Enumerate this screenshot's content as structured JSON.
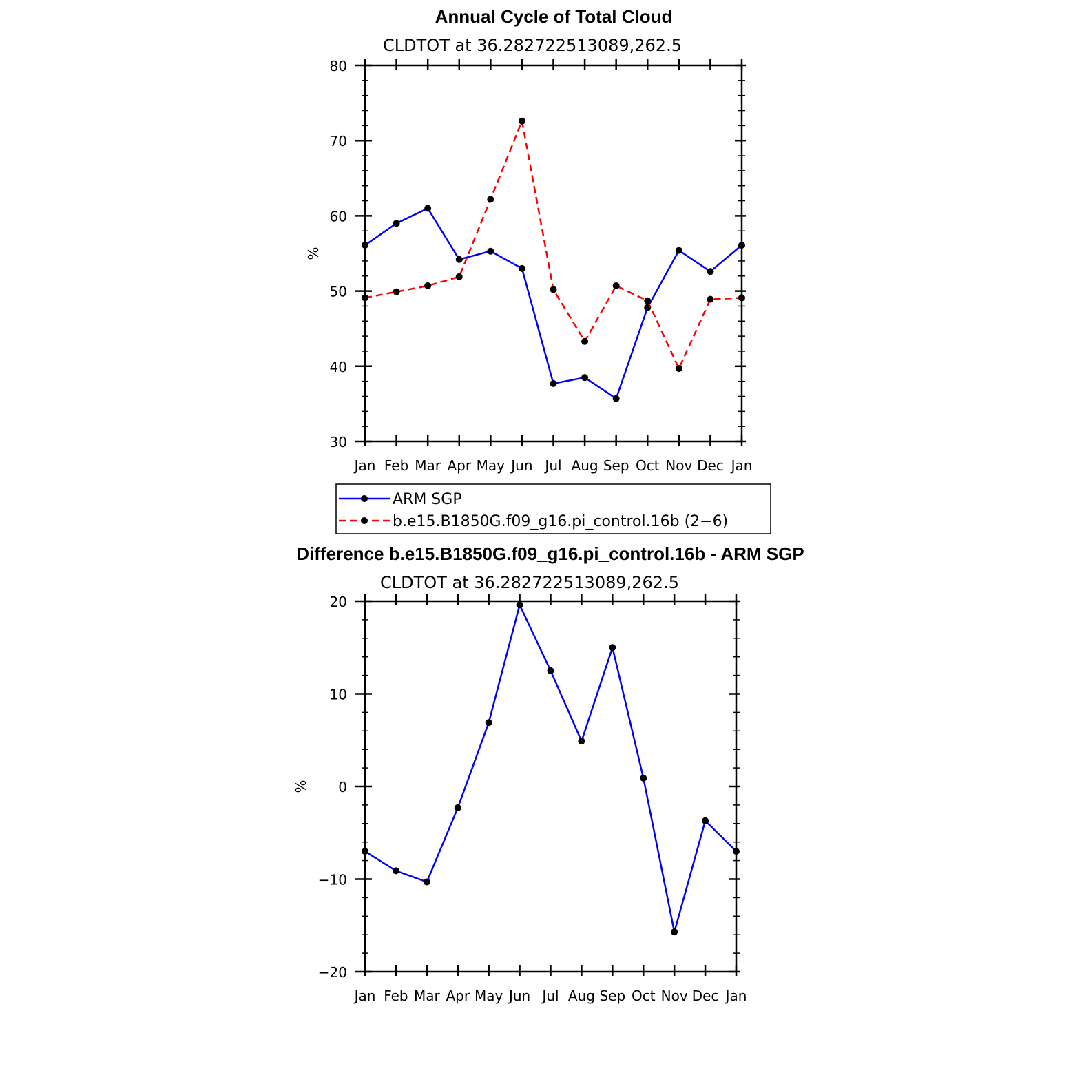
{
  "chart_data": [
    {
      "type": "line",
      "title": "Annual Cycle of Total Cloud",
      "subtitle": "CLDTOT at 36.282722513089,262.5",
      "ylabel": "%",
      "xlabel": "",
      "categories": [
        "Jan",
        "Feb",
        "Mar",
        "Apr",
        "May",
        "Jun",
        "Jul",
        "Aug",
        "Sep",
        "Oct",
        "Nov",
        "Dec",
        "Jan"
      ],
      "ylim": [
        30,
        80
      ],
      "yticks": [
        30,
        40,
        50,
        60,
        70,
        80
      ],
      "series": [
        {
          "name": "ARM SGP",
          "color": "#0000ff",
          "dash": "solid",
          "values": [
            56.1,
            59.0,
            61.0,
            54.2,
            55.3,
            53.0,
            37.7,
            38.5,
            35.7,
            47.8,
            55.4,
            52.6,
            56.1
          ]
        },
        {
          "name": "b.e15.B1850G.f09_g16.pi_control.16b (2−6)",
          "color": "#ff0000",
          "dash": "dashed",
          "values": [
            49.1,
            49.9,
            50.7,
            51.9,
            62.2,
            72.6,
            50.2,
            43.3,
            50.7,
            48.7,
            39.7,
            48.9,
            49.1
          ]
        }
      ],
      "legend": "bottom",
      "grid": false
    },
    {
      "type": "line",
      "title": "Difference b.e15.B1850G.f09_g16.pi_control.16b - ARM SGP",
      "subtitle": "CLDTOT at 36.282722513089,262.5",
      "ylabel": "%",
      "xlabel": "",
      "categories": [
        "Jan",
        "Feb",
        "Mar",
        "Apr",
        "May",
        "Jun",
        "Jul",
        "Aug",
        "Sep",
        "Oct",
        "Nov",
        "Dec",
        "Jan"
      ],
      "ylim": [
        -20,
        20
      ],
      "yticks": [
        -20,
        -10,
        0,
        10,
        20
      ],
      "ytick_labels": [
        "−20",
        "−10",
        "0",
        "10",
        "20"
      ],
      "series": [
        {
          "color": "#0000ff",
          "dash": "solid",
          "values": [
            -7.0,
            -9.1,
            -10.3,
            -2.3,
            6.9,
            19.6,
            12.5,
            4.9,
            15.0,
            0.9,
            -15.7,
            -3.7,
            -7.0
          ]
        }
      ],
      "grid": false
    }
  ]
}
